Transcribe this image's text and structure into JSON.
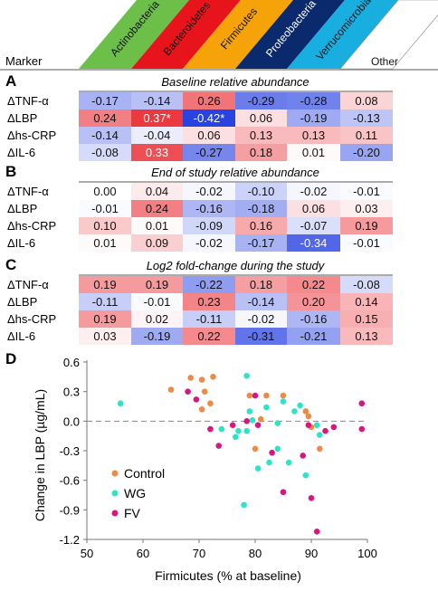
{
  "header": {
    "marker_label": "Marker",
    "columns": [
      {
        "label": "Actinobacteria",
        "color": "#6cc04a",
        "text_color": "#111111"
      },
      {
        "label": "Bacteroidetes",
        "color": "#e8141c",
        "text_color": "#111111"
      },
      {
        "label": "Firmicutes",
        "color": "#f6a30a",
        "text_color": "#111111"
      },
      {
        "label": "Proteobacteria",
        "color": "#0b2a6e",
        "text_color": "#ffffff"
      },
      {
        "label": "Verrucomicrobia",
        "color": "#19aee0",
        "text_color": "#111111"
      },
      {
        "label": "Other",
        "color": "#ffffff",
        "text_color": "#111111"
      }
    ]
  },
  "row_labels": [
    "ΔTNF-α",
    "ΔLBP",
    "Δhs-CRP",
    "ΔIL-6"
  ],
  "heatmap_colors": {
    "positive": "#e8141c",
    "negative": "#1f3ae0",
    "neutral": "#ffffff",
    "max_abs": 0.44
  },
  "panels": [
    {
      "letter": "A",
      "title": "Baseline relative abundance",
      "values": [
        [
          "-0.17",
          "-0.14",
          "0.26",
          "-0.29",
          "-0.28",
          "0.08"
        ],
        [
          "0.24",
          "0.37*",
          "-0.42*",
          "0.06",
          "-0.19",
          "-0.13"
        ],
        [
          "-0.14",
          "-0.04",
          "0.06",
          "0.13",
          "0.13",
          "0.11"
        ],
        [
          "-0.08",
          "0.33",
          "-0.27",
          "0.18",
          "0.01",
          "-0.20"
        ]
      ]
    },
    {
      "letter": "B",
      "title": "End of study relative abundance",
      "values": [
        [
          "0.00",
          "0.04",
          "-0.02",
          "-0.10",
          "-0.02",
          "-0.01"
        ],
        [
          "-0.01",
          "0.24",
          "-0.16",
          "-0.18",
          "0.06",
          "0.03"
        ],
        [
          "0.10",
          "0.01",
          "-0.09",
          "0.16",
          "-0.07",
          "0.19"
        ],
        [
          "0.01",
          "0.09",
          "-0.02",
          "-0.17",
          "-0.34",
          "-0.01"
        ]
      ]
    },
    {
      "letter": "C",
      "title": "Log2 fold-change during the study",
      "values": [
        [
          "0.19",
          "0.19",
          "-0.22",
          "0.18",
          "0.22",
          "-0.08"
        ],
        [
          "-0.11",
          "-0.01",
          "0.23",
          "-0.14",
          "0.20",
          "0.14"
        ],
        [
          "0.19",
          "0.02",
          "-0.11",
          "-0.02",
          "-0.16",
          "0.15"
        ],
        [
          "0.03",
          "-0.19",
          "0.22",
          "-0.31",
          "-0.21",
          "0.13"
        ]
      ]
    }
  ],
  "chart_data": {
    "type": "scatter",
    "letter": "D",
    "xlabel": "Firmicutes (% at baseline)",
    "ylabel": "Change in LBP (µg/mL)",
    "xlim": [
      50,
      100
    ],
    "ylim": [
      -1.2,
      0.6
    ],
    "xticks": [
      "50",
      "60",
      "70",
      "80",
      "90",
      "100"
    ],
    "yticks": [
      "0.6",
      "0.3",
      "0.0",
      "-0.3",
      "-0.6",
      "-0.9",
      "-1.2"
    ],
    "dashed_zero_line": true,
    "legend": "inside-lower-left",
    "series": [
      {
        "name": "Control",
        "color": "#ee8a47",
        "points": [
          [
            65,
            0.32
          ],
          [
            68.5,
            0.44
          ],
          [
            70.5,
            0.12
          ],
          [
            70.5,
            0.42
          ],
          [
            71,
            0.3
          ],
          [
            72,
            0.18
          ],
          [
            72.5,
            0.45
          ],
          [
            79,
            0.26
          ],
          [
            80,
            -0.28
          ],
          [
            81,
            0.02
          ],
          [
            82,
            0.26
          ],
          [
            85,
            0.26
          ],
          [
            89,
            0.1
          ],
          [
            89.5,
            0.05
          ],
          [
            90,
            -0.06
          ],
          [
            91.5,
            -0.28
          ]
        ]
      },
      {
        "name": "WG",
        "color": "#2fe3c6",
        "points": [
          [
            56,
            0.18
          ],
          [
            74,
            -0.08
          ],
          [
            76.5,
            -0.16
          ],
          [
            77,
            -0.1
          ],
          [
            78,
            -0.85
          ],
          [
            78.5,
            0.46
          ],
          [
            78.5,
            -0.1
          ],
          [
            79,
            0.1
          ],
          [
            79.5,
            0.01
          ],
          [
            80.5,
            -0.48
          ],
          [
            82,
            0.14
          ],
          [
            82.5,
            -0.42
          ],
          [
            84,
            -0.02
          ],
          [
            84,
            -0.28
          ],
          [
            85,
            0.2
          ],
          [
            86,
            -0.42
          ],
          [
            87,
            0.1
          ],
          [
            88,
            0.16
          ],
          [
            89,
            -0.55
          ],
          [
            91,
            -0.04
          ],
          [
            91.5,
            -0.14
          ]
        ]
      },
      {
        "name": "FV",
        "color": "#d81680",
        "points": [
          [
            68,
            0.3
          ],
          [
            69.5,
            0.22
          ],
          [
            72,
            -0.08
          ],
          [
            73.5,
            -0.25
          ],
          [
            76,
            -0.04
          ],
          [
            78.5,
            0.0
          ],
          [
            80,
            0.26
          ],
          [
            80.5,
            -0.04
          ],
          [
            83,
            -0.32
          ],
          [
            85,
            -0.72
          ],
          [
            88.5,
            -0.35
          ],
          [
            89.5,
            -0.04
          ],
          [
            90,
            -0.78
          ],
          [
            91,
            -1.12
          ],
          [
            92.5,
            -0.1
          ],
          [
            94,
            -0.06
          ],
          [
            99,
            0.18
          ],
          [
            99,
            -0.08
          ]
        ]
      }
    ]
  }
}
